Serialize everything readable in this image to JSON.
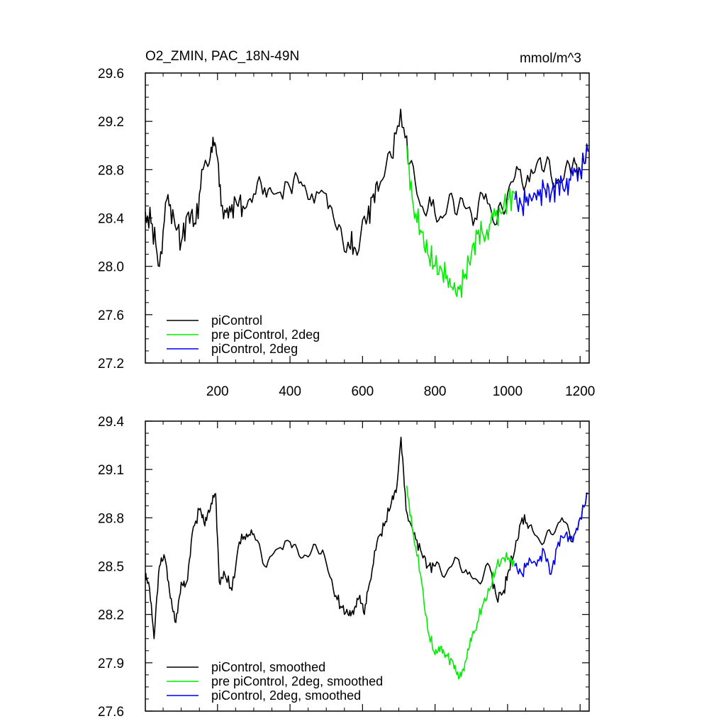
{
  "chart_data": [
    {
      "type": "line",
      "title": "O2_ZMIN, PAC_18N-49N",
      "units": "mmol/m^3",
      "xlim": [
        1,
        1225
      ],
      "ylim": [
        27.2,
        29.6
      ],
      "x_ticks": [
        200,
        400,
        600,
        800,
        1000,
        1200
      ],
      "y_ticks": [
        27.2,
        27.6,
        28.0,
        28.4,
        28.8,
        29.2,
        29.6
      ],
      "y_tick_labels": [
        "27.2",
        "27.6",
        "28.0",
        "28.4",
        "28.8",
        "29.2",
        "29.6"
      ],
      "series": [
        {
          "name": "piControl",
          "color": "#000000",
          "x": [
            1,
            20,
            40,
            60,
            80,
            100,
            120,
            140,
            160,
            180,
            195,
            210,
            230,
            250,
            270,
            300,
            330,
            360,
            400,
            430,
            460,
            500,
            530,
            560,
            580,
            610,
            630,
            650,
            680,
            705,
            730,
            760,
            790,
            820,
            850,
            880,
            910,
            940,
            970,
            1000,
            1030,
            1060,
            1090,
            1120,
            1150,
            1180,
            1200,
            1222
          ],
          "y": [
            28.45,
            28.35,
            28.0,
            28.55,
            28.4,
            28.2,
            28.45,
            28.35,
            28.8,
            28.9,
            29.0,
            28.5,
            28.4,
            28.55,
            28.5,
            28.6,
            28.65,
            28.6,
            28.65,
            28.7,
            28.6,
            28.6,
            28.3,
            28.2,
            28.15,
            28.35,
            28.6,
            28.7,
            28.9,
            29.3,
            28.85,
            28.5,
            28.5,
            28.4,
            28.55,
            28.5,
            28.4,
            28.6,
            28.35,
            28.6,
            28.8,
            28.7,
            28.9,
            28.75,
            28.7,
            28.85,
            28.8,
            28.95
          ]
        },
        {
          "name": "pre piControl, 2deg",
          "color": "#00ee00",
          "x": [
            722,
            740,
            760,
            780,
            800,
            820,
            840,
            860,
            880,
            900,
            920,
            940,
            960,
            980,
            1000,
            1020
          ],
          "y": [
            29.0,
            28.5,
            28.3,
            28.1,
            28.0,
            27.95,
            27.9,
            27.75,
            27.9,
            28.1,
            28.3,
            28.25,
            28.4,
            28.45,
            28.55,
            28.6
          ]
        },
        {
          "name": "piControl, 2deg",
          "color": "#0000ee",
          "x": [
            1020,
            1040,
            1060,
            1080,
            1100,
            1120,
            1140,
            1160,
            1180,
            1200,
            1222
          ],
          "y": [
            28.55,
            28.5,
            28.6,
            28.55,
            28.65,
            28.6,
            28.7,
            28.65,
            28.75,
            28.8,
            28.95
          ]
        }
      ]
    },
    {
      "type": "line",
      "xlim": [
        1,
        1225
      ],
      "ylim": [
        27.6,
        29.4
      ],
      "x_ticks": [
        200,
        400,
        600,
        800,
        1000,
        1200
      ],
      "y_ticks": [
        27.6,
        27.9,
        28.2,
        28.5,
        28.8,
        29.1,
        29.4
      ],
      "y_tick_labels": [
        "27.6",
        "27.9",
        "28.2",
        "28.5",
        "28.8",
        "29.1",
        "29.4"
      ],
      "series": [
        {
          "name": "piControl, smoothed",
          "color": "#000000",
          "x": [
            1,
            10,
            25,
            40,
            55,
            70,
            85,
            100,
            115,
            130,
            150,
            165,
            180,
            195,
            205,
            220,
            240,
            260,
            280,
            300,
            330,
            360,
            400,
            430,
            460,
            490,
            520,
            540,
            560,
            575,
            590,
            605,
            620,
            640,
            660,
            680,
            695,
            706,
            720,
            740,
            760,
            780,
            800,
            830,
            860,
            890,
            920,
            950,
            970,
            990,
            1000,
            1020,
            1040,
            1060,
            1090,
            1120,
            1150,
            1180,
            1200,
            1222
          ],
          "y": [
            28.45,
            28.4,
            28.05,
            28.5,
            28.55,
            28.3,
            28.15,
            28.4,
            28.4,
            28.7,
            28.85,
            28.75,
            28.85,
            28.95,
            28.4,
            28.45,
            28.35,
            28.65,
            28.7,
            28.7,
            28.5,
            28.6,
            28.65,
            28.55,
            28.6,
            28.6,
            28.35,
            28.25,
            28.2,
            28.2,
            28.3,
            28.2,
            28.4,
            28.65,
            28.75,
            28.9,
            29.0,
            29.3,
            28.85,
            28.7,
            28.6,
            28.5,
            28.5,
            28.45,
            28.55,
            28.45,
            28.4,
            28.5,
            28.3,
            28.35,
            28.45,
            28.6,
            28.8,
            28.75,
            28.65,
            28.7,
            28.8,
            28.65,
            28.8,
            28.95
          ]
        },
        {
          "name": "pre piControl, 2deg, smoothed",
          "color": "#00ee00",
          "x": [
            722,
            740,
            760,
            780,
            800,
            815,
            830,
            850,
            865,
            880,
            895,
            910,
            930,
            950,
            970,
            990,
            1010,
            1020
          ],
          "y": [
            29.0,
            28.7,
            28.45,
            28.1,
            27.95,
            28.0,
            27.95,
            27.9,
            27.8,
            27.85,
            28.0,
            28.1,
            28.25,
            28.35,
            28.5,
            28.55,
            28.55,
            28.5
          ]
        },
        {
          "name": "piControl, 2deg, smoothed",
          "color": "#0000ee",
          "x": [
            1020,
            1040,
            1060,
            1080,
            1100,
            1120,
            1140,
            1160,
            1180,
            1200,
            1222
          ],
          "y": [
            28.5,
            28.45,
            28.55,
            28.5,
            28.6,
            28.45,
            28.65,
            28.7,
            28.65,
            28.8,
            28.95
          ]
        }
      ]
    }
  ]
}
